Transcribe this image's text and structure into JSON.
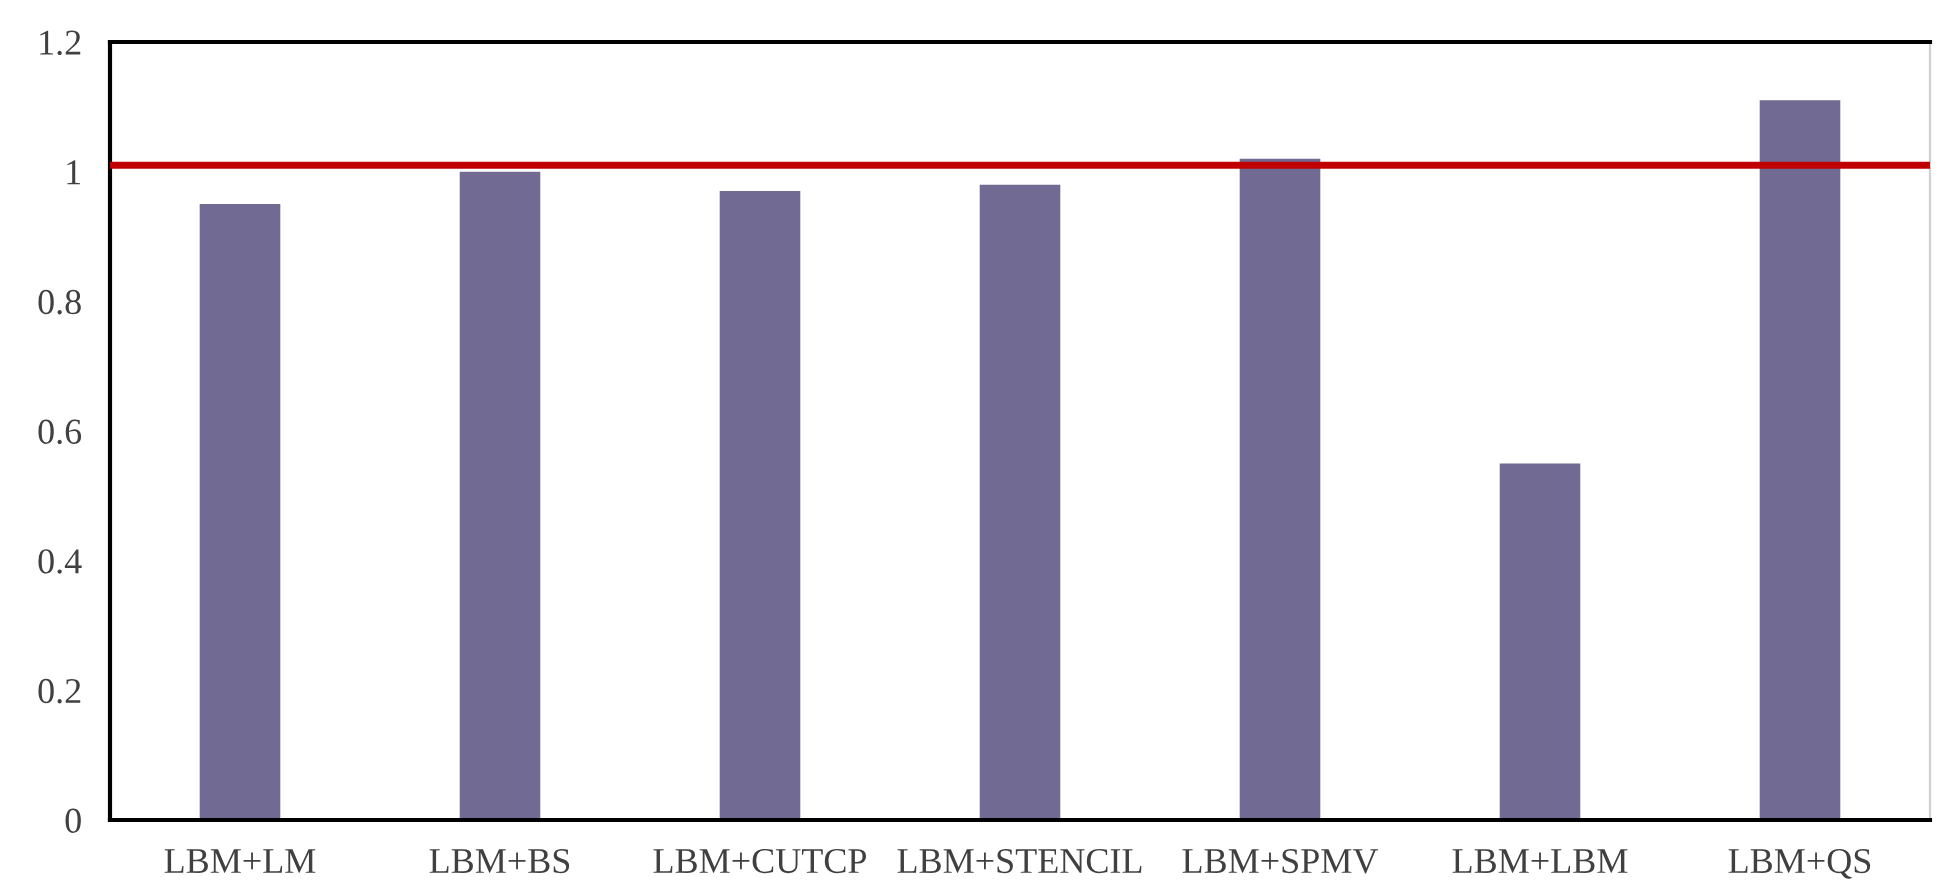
{
  "chart_data": {
    "type": "bar",
    "categories": [
      "LBM+LM",
      "LBM+BS",
      "LBM+CUTCP",
      "LBM+STENCIL",
      "LBM+SPMV",
      "LBM+LBM",
      "LBM+QS"
    ],
    "values": [
      0.95,
      1.0,
      0.97,
      0.98,
      1.02,
      0.55,
      1.11
    ],
    "color": "#716a93",
    "ylim": [
      0,
      1.2
    ],
    "yticks": [
      0,
      {
        "value": 0.2,
        "label": "0.2"
      },
      {
        "value": 0.4,
        "label": "0.4"
      },
      {
        "value": 0.6,
        "label": "0.6"
      },
      {
        "value": 0.8,
        "label": "0.8"
      },
      1,
      {
        "value": 1.2,
        "label": "1.2"
      }
    ],
    "ref_lines": [
      {
        "axis": "y",
        "value": 1.01,
        "color": "#c00000",
        "line_style": "solid"
      }
    ],
    "grid": false,
    "legend": false
  }
}
